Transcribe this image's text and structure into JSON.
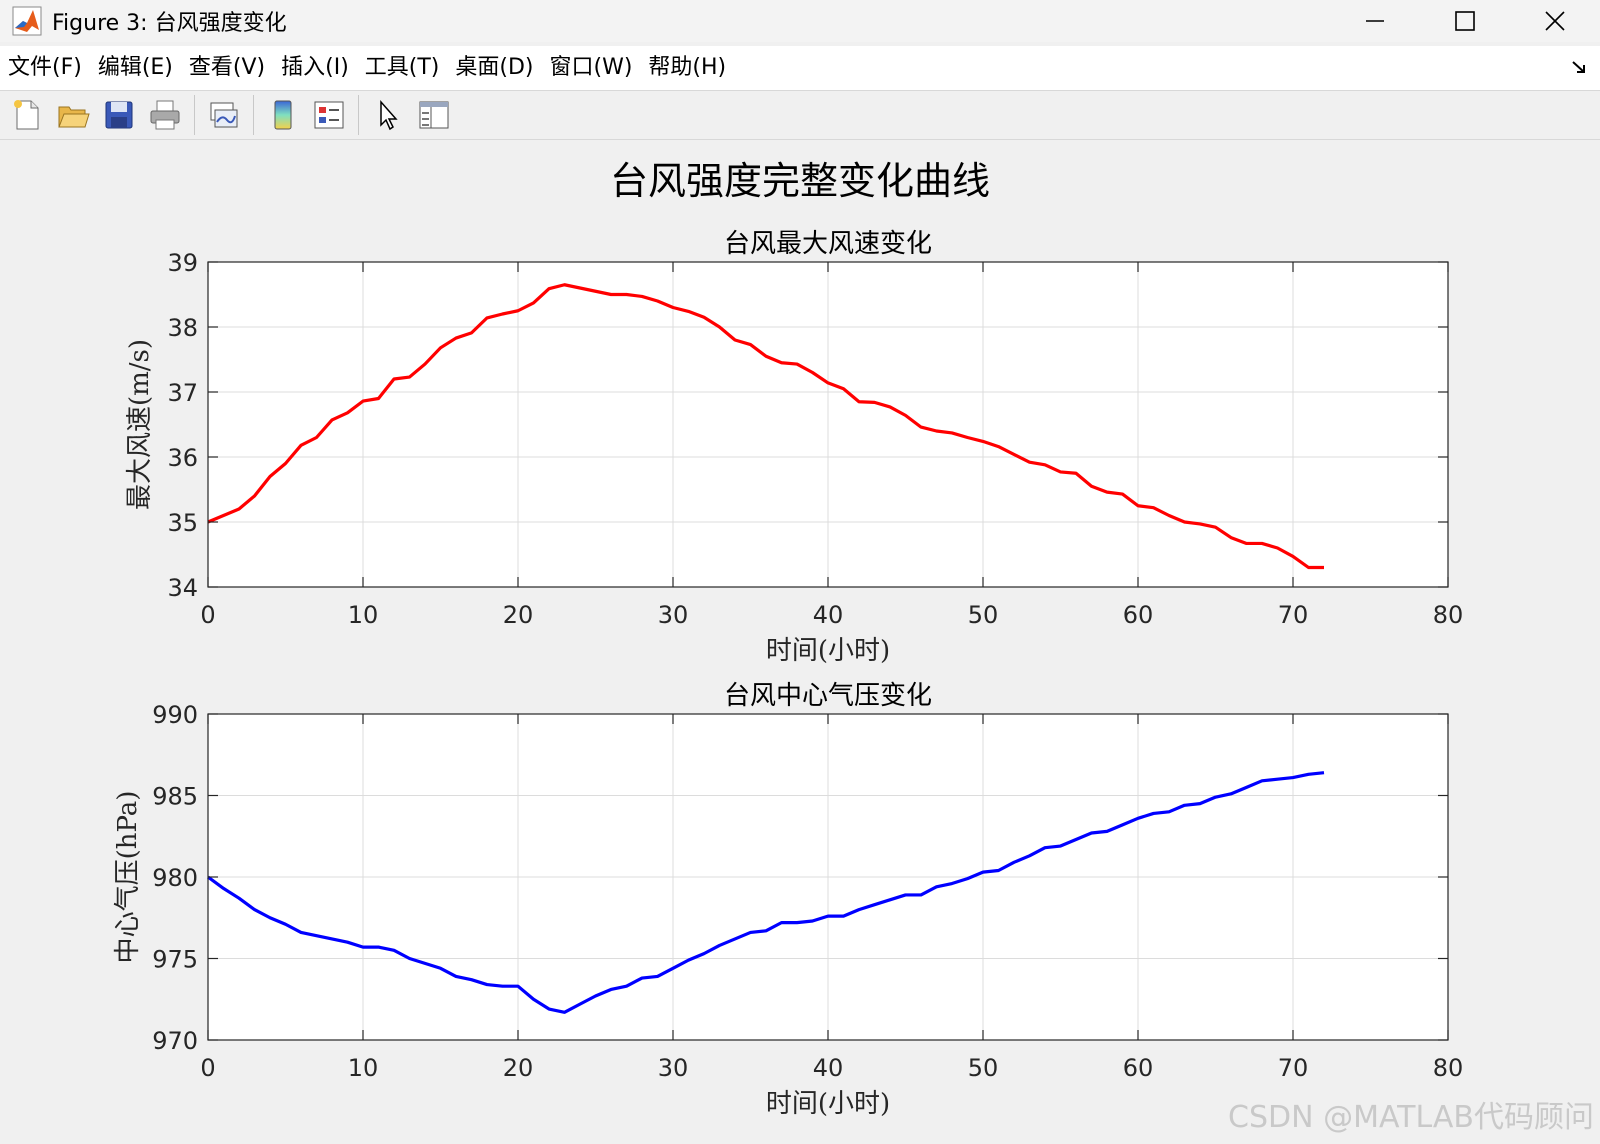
{
  "window": {
    "title": "Figure 3: 台风强度变化",
    "icon": "matlab-logo-icon",
    "controls": [
      "minimize-icon",
      "maximize-icon",
      "close-icon"
    ]
  },
  "menu": [
    "文件(F)",
    "编辑(E)",
    "查看(V)",
    "插入(I)",
    "工具(T)",
    "桌面(D)",
    "窗口(W)",
    "帮助(H)"
  ],
  "toolbar": [
    "new-figure-icon",
    "open-file-icon",
    "save-icon",
    "print-icon",
    "link-plot-icon",
    "colorbar-icon",
    "legend-icon",
    "edit-plot-icon",
    "property-inspector-icon"
  ],
  "colors": {
    "wind": "#ff0000",
    "pressure": "#0000ff",
    "grid": "#dcdcdc"
  },
  "watermark": "CSDN @MATLAB代码顾问",
  "chart_data": {
    "suptitle": "台风强度完整变化曲线",
    "charts": [
      {
        "type": "line",
        "title": "台风最大风速变化",
        "xlabel": "时间(小时)",
        "ylabel": "最大风速(m/s)",
        "xlim": [
          0,
          80
        ],
        "ylim": [
          34,
          39
        ],
        "xticks": [
          0,
          10,
          20,
          30,
          40,
          50,
          60,
          70,
          80
        ],
        "yticks": [
          34,
          35,
          36,
          37,
          38,
          39
        ],
        "grid": true,
        "series": [
          {
            "color": "#ff0000",
            "x": [
              0,
              1,
              2,
              3,
              4,
              5,
              6,
              7,
              8,
              9,
              10,
              11,
              12,
              13,
              14,
              15,
              16,
              17,
              18,
              19,
              20,
              21,
              22,
              23,
              24,
              25,
              26,
              27,
              28,
              29,
              30,
              31,
              32,
              33,
              34,
              35,
              36,
              37,
              38,
              39,
              40,
              41,
              42,
              43,
              44,
              45,
              46,
              47,
              48,
              49,
              50,
              51,
              52,
              53,
              54,
              55,
              56,
              57,
              58,
              59,
              60,
              61,
              62,
              63,
              64,
              65,
              66,
              67,
              68,
              69,
              70,
              71,
              72
            ],
            "y": [
              35.0,
              35.1,
              35.2,
              35.4,
              35.7,
              35.9,
              36.18,
              36.3,
              36.57,
              36.68,
              36.86,
              36.9,
              37.2,
              37.23,
              37.43,
              37.68,
              37.83,
              37.91,
              38.14,
              38.2,
              38.25,
              38.37,
              38.59,
              38.65,
              38.6,
              38.55,
              38.5,
              38.5,
              38.47,
              38.4,
              38.3,
              38.24,
              38.15,
              38.0,
              37.8,
              37.73,
              37.55,
              37.45,
              37.43,
              37.3,
              37.14,
              37.05,
              36.85,
              36.84,
              36.77,
              36.64,
              36.46,
              36.4,
              36.37,
              36.3,
              36.24,
              36.16,
              36.04,
              35.92,
              35.88,
              35.77,
              35.75,
              35.55,
              35.46,
              35.43,
              35.25,
              35.22,
              35.1,
              35.0,
              34.97,
              34.92,
              34.76,
              34.67,
              34.67,
              34.6,
              34.47,
              34.3,
              34.3
            ]
          }
        ]
      },
      {
        "type": "line",
        "title": "台风中心气压变化",
        "xlabel": "时间(小时)",
        "ylabel": "中心气压(hPa)",
        "xlim": [
          0,
          80
        ],
        "ylim": [
          970,
          990
        ],
        "xticks": [
          0,
          10,
          20,
          30,
          40,
          50,
          60,
          70,
          80
        ],
        "yticks": [
          970,
          975,
          980,
          985,
          990
        ],
        "grid": true,
        "series": [
          {
            "color": "#0000ff",
            "x": [
              0,
              1,
              2,
              3,
              4,
              5,
              6,
              7,
              8,
              9,
              10,
              11,
              12,
              13,
              14,
              15,
              16,
              17,
              18,
              19,
              20,
              21,
              22,
              23,
              24,
              25,
              26,
              27,
              28,
              29,
              30,
              31,
              32,
              33,
              34,
              35,
              36,
              37,
              38,
              39,
              40,
              41,
              42,
              43,
              44,
              45,
              46,
              47,
              48,
              49,
              50,
              51,
              52,
              53,
              54,
              55,
              56,
              57,
              58,
              59,
              60,
              61,
              62,
              63,
              64,
              65,
              66,
              67,
              68,
              69,
              70,
              71,
              72
            ],
            "y": [
              980.0,
              979.3,
              978.7,
              978.0,
              977.5,
              977.1,
              976.6,
              976.4,
              976.2,
              976.0,
              975.7,
              975.7,
              975.5,
              975.0,
              974.7,
              974.4,
              973.9,
              973.7,
              973.4,
              973.3,
              973.3,
              972.5,
              971.9,
              971.7,
              972.2,
              972.7,
              973.1,
              973.3,
              973.8,
              973.9,
              974.4,
              974.9,
              975.3,
              975.8,
              976.2,
              976.6,
              976.7,
              977.2,
              977.2,
              977.3,
              977.6,
              977.6,
              978.0,
              978.3,
              978.6,
              978.9,
              978.9,
              979.4,
              979.6,
              979.9,
              980.3,
              980.4,
              980.9,
              981.3,
              981.8,
              981.9,
              982.3,
              982.7,
              982.8,
              983.2,
              983.6,
              983.9,
              984.0,
              984.4,
              984.5,
              984.9,
              985.1,
              985.5,
              985.9,
              986.0,
              986.1,
              986.3,
              986.4
            ]
          }
        ]
      }
    ]
  }
}
